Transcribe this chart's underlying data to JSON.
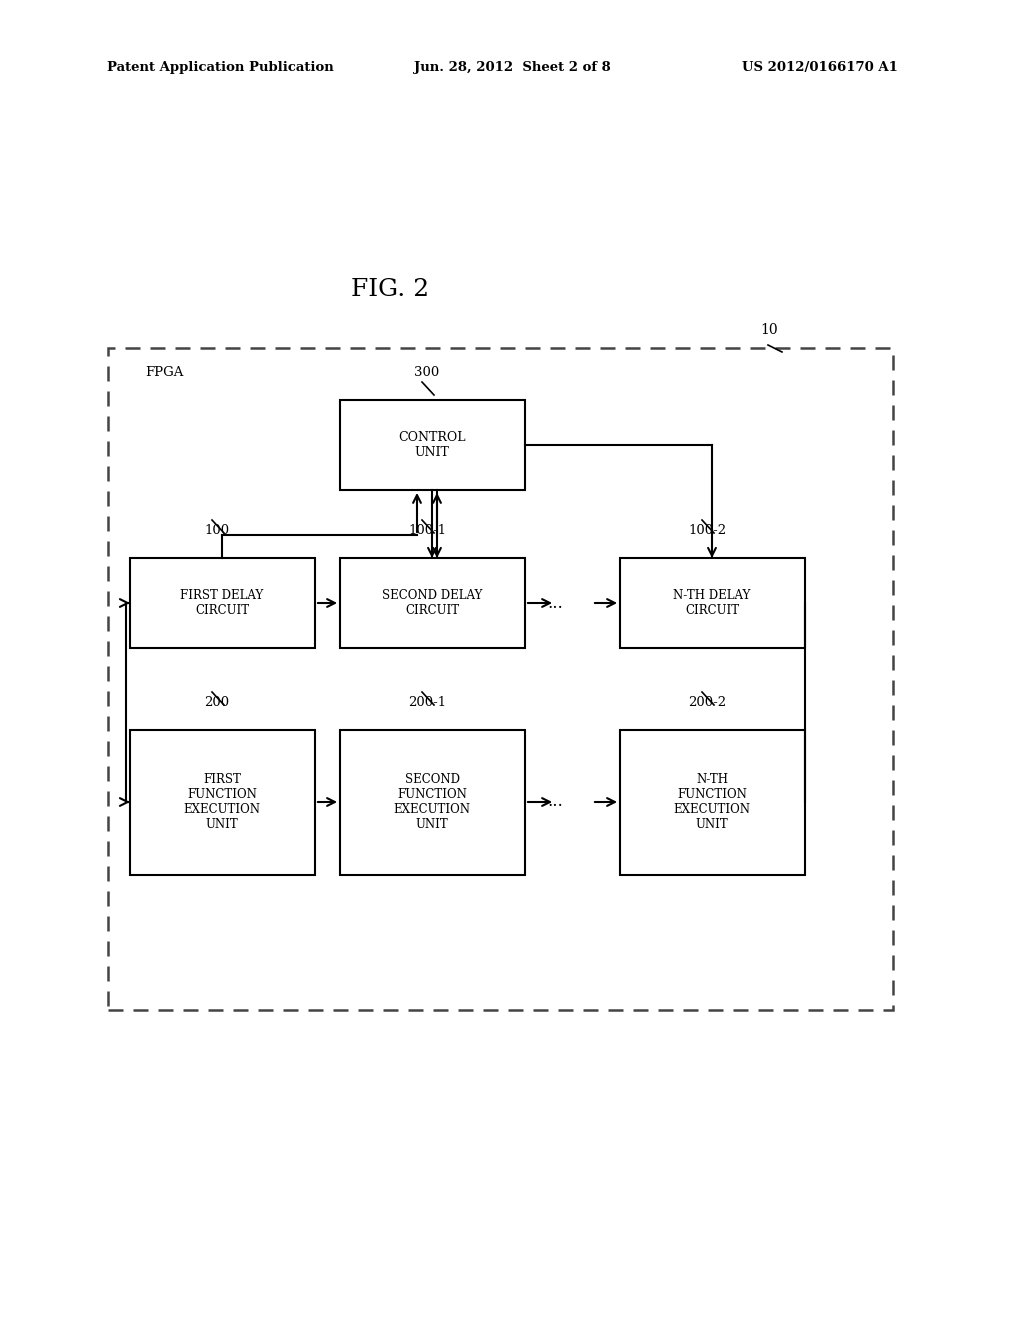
{
  "fig_title": "FIG. 2",
  "header_left": "Patent Application Publication",
  "header_center": "Jun. 28, 2012  Sheet 2 of 8",
  "header_right": "US 2012/0166170 A1",
  "fpga_label": "FPGA",
  "outer_label": "10",
  "control_unit": {
    "label": "CONTROL\nUNIT",
    "ref": "300"
  },
  "delay_circuits": [
    {
      "label": "FIRST DELAY\nCIRCUIT",
      "ref": "100"
    },
    {
      "label": "SECOND DELAY\nCIRCUIT",
      "ref": "100-1"
    },
    {
      "label": "N-TH DELAY\nCIRCUIT",
      "ref": "100-2"
    }
  ],
  "function_units": [
    {
      "label": "FIRST\nFUNCTION\nEXECUTION\nUNIT",
      "ref": "200"
    },
    {
      "label": "SECOND\nFUNCTION\nEXECUTION\nUNIT",
      "ref": "200-1"
    },
    {
      "label": "N-TH\nFUNCTION\nEXECUTION\nUNIT",
      "ref": "200-2"
    }
  ],
  "dots": "...",
  "bg_color": "#ffffff",
  "box_edge_color": "#000000",
  "text_color": "#000000",
  "dash_color": "#444444"
}
